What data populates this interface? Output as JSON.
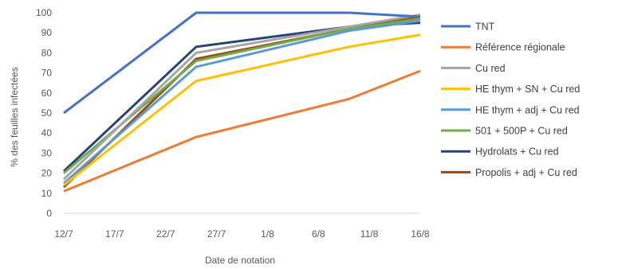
{
  "chart_data": {
    "type": "line",
    "xlabel": "Date de notation",
    "ylabel": "% des feuilles infectées",
    "x_tick_labels": [
      "12/7",
      "17/7",
      "22/7",
      "27/7",
      "1/8",
      "6/8",
      "11/8",
      "16/8"
    ],
    "x_tick_dates": [
      "07-12",
      "07-17",
      "07-22",
      "07-27",
      "08-01",
      "08-06",
      "08-11",
      "08-16"
    ],
    "x_dates": [
      "07-12",
      "07-25",
      "08-09",
      "08-16"
    ],
    "ylim": [
      0,
      100
    ],
    "y_ticks": [
      0,
      10,
      20,
      30,
      40,
      50,
      60,
      70,
      80,
      90,
      100
    ],
    "grid": false,
    "legend_position": "right",
    "series": [
      {
        "name": "TNT",
        "color": "#4472C4",
        "values": [
          50,
          100,
          100,
          98
        ]
      },
      {
        "name": "Référence  régionale",
        "color": "#ED7D31",
        "values": [
          11,
          38,
          57,
          71
        ]
      },
      {
        "name": "Cu red",
        "color": "#A5A5A5",
        "values": [
          17,
          80,
          93,
          99
        ]
      },
      {
        "name": "HE thym  + SN + Cu red",
        "color": "#FFC000",
        "values": [
          14,
          66,
          83,
          89
        ]
      },
      {
        "name": "HE thym  + adj + Cu red",
        "color": "#5B9BD5",
        "values": [
          15,
          73,
          91,
          96
        ]
      },
      {
        "name": "501 + 500P + Cu red",
        "color": "#70AD47",
        "values": [
          20,
          76,
          92,
          97
        ]
      },
      {
        "name": "Hydrolats  + Cu red",
        "color": "#264478",
        "values": [
          21,
          83,
          93,
          95
        ]
      },
      {
        "name": "Propolis  + adj + Cu red",
        "color": "#9E480E",
        "values": [
          13,
          77,
          92,
          98
        ]
      }
    ]
  }
}
